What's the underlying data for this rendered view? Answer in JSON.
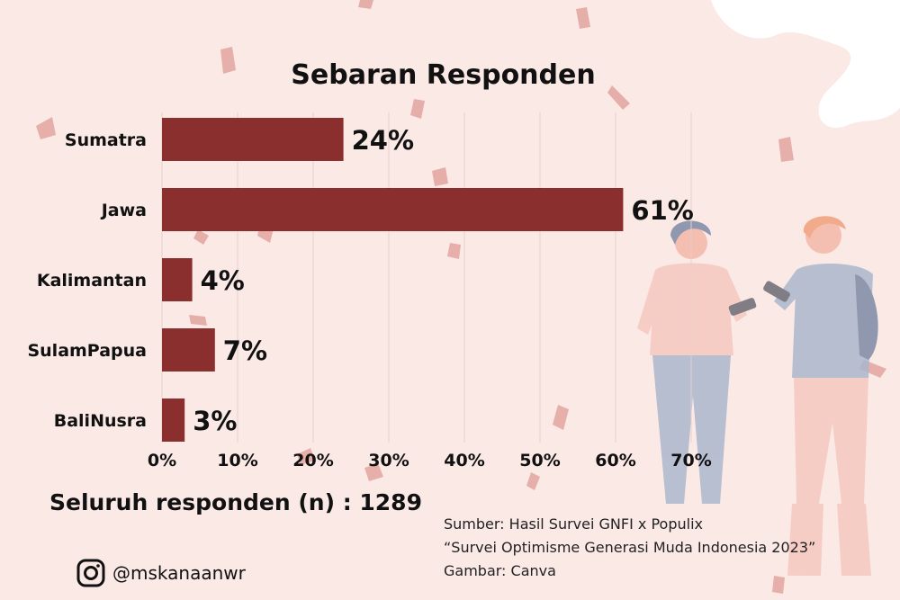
{
  "chart_data": {
    "type": "bar",
    "orientation": "horizontal",
    "title": "Sebaran Responden",
    "categories": [
      "Sumatra",
      "Jawa",
      "Kalimantan",
      "SulamPapua",
      "BaliNusra"
    ],
    "values": [
      24,
      61,
      4,
      7,
      3
    ],
    "value_labels": [
      "24%",
      "61%",
      "4%",
      "7%",
      "3%"
    ],
    "xticks": [
      "0%",
      "10%",
      "20%",
      "30%",
      "40%",
      "50%",
      "60%",
      "70%"
    ],
    "xlim": [
      0,
      70
    ],
    "grid": "vertical",
    "legend": "none",
    "bar_color": "#8b2e2e"
  },
  "footer": {
    "total_label": "Seluruh responden (n) : 1289",
    "source_lines": [
      "Sumber: Hasil Survei GNFI x Populix",
      "“Survei Optimisme Generasi Muda Indonesia 2023”",
      "Gambar: Canva"
    ],
    "instagram_handle": "@mskanaanwr",
    "instagram_icon": "instagram-icon"
  },
  "colors": {
    "background": "#fbe9e6",
    "bar": "#8b2e2e",
    "text": "#111111"
  }
}
